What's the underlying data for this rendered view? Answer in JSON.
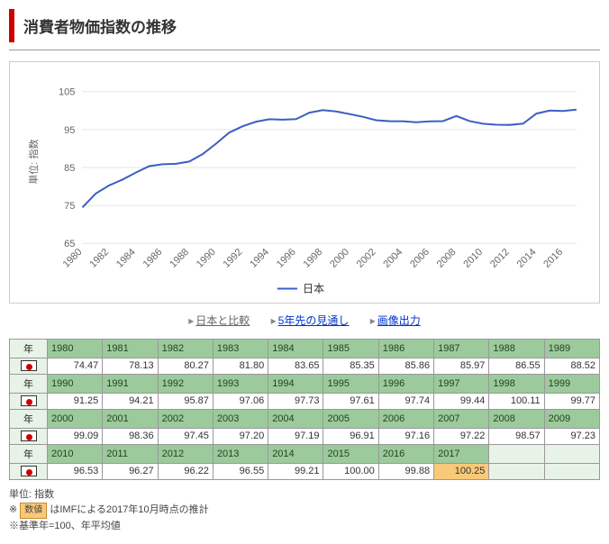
{
  "title": "消費者物価指数の推移",
  "chart": {
    "type": "line",
    "series_name": "日本",
    "line_color": "#3b5fc4",
    "grid_color": "#e5e5e5",
    "axis_color": "#bbbbbb",
    "text_color": "#666666",
    "font_size": 11,
    "y_axis_label": "単位: 指数",
    "y_ticks": [
      65,
      75,
      85,
      95,
      105
    ],
    "x_ticks": [
      1980,
      1982,
      1984,
      1986,
      1988,
      1990,
      1992,
      1994,
      1996,
      1998,
      2000,
      2002,
      2004,
      2006,
      2008,
      2010,
      2012,
      2014,
      2016
    ],
    "xlim": [
      1980,
      2017
    ],
    "ylim": [
      65,
      108
    ],
    "years": [
      1980,
      1981,
      1982,
      1983,
      1984,
      1985,
      1986,
      1987,
      1988,
      1989,
      1990,
      1991,
      1992,
      1993,
      1994,
      1995,
      1996,
      1997,
      1998,
      1999,
      2000,
      2001,
      2002,
      2003,
      2004,
      2005,
      2006,
      2007,
      2008,
      2009,
      2010,
      2011,
      2012,
      2013,
      2014,
      2015,
      2016,
      2017
    ],
    "values": [
      74.47,
      78.13,
      80.27,
      81.8,
      83.65,
      85.35,
      85.86,
      85.97,
      86.55,
      88.52,
      91.25,
      94.21,
      95.87,
      97.06,
      97.73,
      97.61,
      97.74,
      99.44,
      100.11,
      99.77,
      99.09,
      98.36,
      97.45,
      97.2,
      97.19,
      96.91,
      97.16,
      97.22,
      98.57,
      97.23,
      96.53,
      96.27,
      96.22,
      96.55,
      99.21,
      100.0,
      99.88,
      100.25
    ]
  },
  "links": {
    "compare": "日本と比較",
    "forecast": "5年先の見通し",
    "image": "画像出力"
  },
  "table": {
    "row_label": "年",
    "decades": [
      {
        "years": [
          1980,
          1981,
          1982,
          1983,
          1984,
          1985,
          1986,
          1987,
          1988,
          1989
        ],
        "values": [
          "74.47",
          "78.13",
          "80.27",
          "81.80",
          "83.65",
          "85.35",
          "85.86",
          "85.97",
          "86.55",
          "88.52"
        ],
        "est": [
          false,
          false,
          false,
          false,
          false,
          false,
          false,
          false,
          false,
          false
        ]
      },
      {
        "years": [
          1990,
          1991,
          1992,
          1993,
          1994,
          1995,
          1996,
          1997,
          1998,
          1999
        ],
        "values": [
          "91.25",
          "94.21",
          "95.87",
          "97.06",
          "97.73",
          "97.61",
          "97.74",
          "99.44",
          "100.11",
          "99.77"
        ],
        "est": [
          false,
          false,
          false,
          false,
          false,
          false,
          false,
          false,
          false,
          false
        ]
      },
      {
        "years": [
          2000,
          2001,
          2002,
          2003,
          2004,
          2005,
          2006,
          2007,
          2008,
          2009
        ],
        "values": [
          "99.09",
          "98.36",
          "97.45",
          "97.20",
          "97.19",
          "96.91",
          "97.16",
          "97.22",
          "98.57",
          "97.23"
        ],
        "est": [
          false,
          false,
          false,
          false,
          false,
          false,
          false,
          false,
          false,
          false
        ]
      },
      {
        "years": [
          2010,
          2011,
          2012,
          2013,
          2014,
          2015,
          2016,
          2017,
          null,
          null
        ],
        "values": [
          "96.53",
          "96.27",
          "96.22",
          "96.55",
          "99.21",
          "100.00",
          "99.88",
          "100.25",
          "",
          ""
        ],
        "est": [
          false,
          false,
          false,
          false,
          false,
          false,
          false,
          true,
          false,
          false
        ]
      }
    ]
  },
  "notes": {
    "unit": "単位: 指数",
    "est_chip": "数値",
    "est_text": "はIMFによる2017年10月時点の推計",
    "base": "※基準年=100、年平均値",
    "star": "※"
  }
}
